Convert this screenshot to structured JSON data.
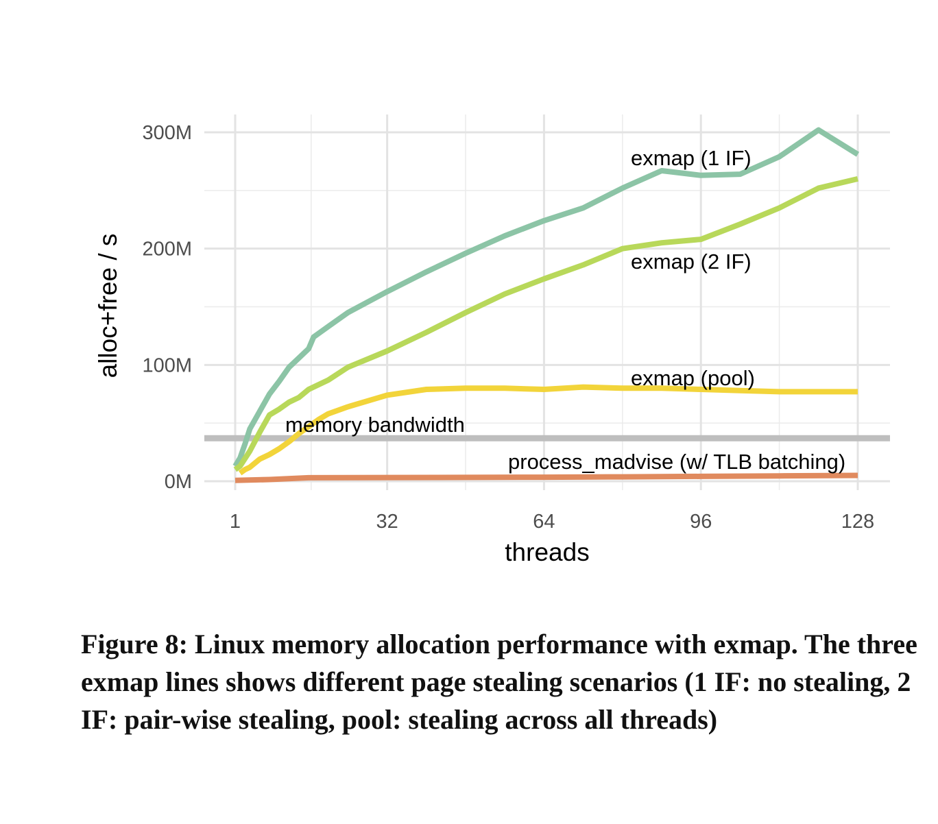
{
  "caption": "Figure 8: Linux memory allocation performance with exmap. The three exmap lines shows different page stealing scenarios (1 IF: no stealing, 2 IF: pair-wise stealing, pool: stealing across all threads)",
  "chart_data": {
    "type": "line",
    "title": "",
    "xlabel": "threads",
    "ylabel": "alloc+free / s",
    "xlim": [
      1,
      128
    ],
    "ylim": [
      0,
      300000000
    ],
    "x_ticks": [
      1,
      32,
      64,
      96,
      128
    ],
    "x_tick_labels": [
      "1",
      "32",
      "64",
      "96",
      "128"
    ],
    "y_ticks": [
      0,
      100000000,
      200000000,
      300000000
    ],
    "y_tick_labels": [
      "0M",
      "100M",
      "200M",
      "300M"
    ],
    "grid": true,
    "legend": "none (direct labels)",
    "reference_lines": [
      {
        "name": "memory bandwidth",
        "y": 37000000,
        "color": "#bebebe"
      }
    ],
    "series": [
      {
        "name": "exmap (1 IF)",
        "color": "#8cc4a6",
        "points": [
          [
            1,
            13000000
          ],
          [
            2,
            20000000
          ],
          [
            3,
            32000000
          ],
          [
            4,
            45000000
          ],
          [
            6,
            60000000
          ],
          [
            8,
            75000000
          ],
          [
            10,
            86000000
          ],
          [
            12,
            98000000
          ],
          [
            14,
            106000000
          ],
          [
            16,
            114000000
          ],
          [
            17,
            124000000
          ],
          [
            20,
            133000000
          ],
          [
            24,
            145000000
          ],
          [
            32,
            163000000
          ],
          [
            40,
            180000000
          ],
          [
            48,
            196000000
          ],
          [
            56,
            211000000
          ],
          [
            64,
            224000000
          ],
          [
            72,
            235000000
          ],
          [
            80,
            252000000
          ],
          [
            88,
            267000000
          ],
          [
            96,
            263000000
          ],
          [
            104,
            264000000
          ],
          [
            112,
            279000000
          ],
          [
            120,
            302000000
          ],
          [
            128,
            281000000
          ]
        ]
      },
      {
        "name": "exmap (2 IF)",
        "color": "#b8d85a",
        "points": [
          [
            1,
            10000000
          ],
          [
            2,
            13000000
          ],
          [
            4,
            26000000
          ],
          [
            6,
            42000000
          ],
          [
            8,
            57000000
          ],
          [
            10,
            62000000
          ],
          [
            12,
            68000000
          ],
          [
            14,
            72000000
          ],
          [
            16,
            79000000
          ],
          [
            20,
            87000000
          ],
          [
            24,
            98000000
          ],
          [
            32,
            112000000
          ],
          [
            40,
            128000000
          ],
          [
            48,
            145000000
          ],
          [
            56,
            161000000
          ],
          [
            64,
            174000000
          ],
          [
            72,
            186000000
          ],
          [
            80,
            200000000
          ],
          [
            88,
            205000000
          ],
          [
            96,
            208000000
          ],
          [
            104,
            221000000
          ],
          [
            112,
            235000000
          ],
          [
            120,
            252000000
          ],
          [
            128,
            260000000
          ]
        ]
      },
      {
        "name": "exmap (pool)",
        "color": "#f2d43a",
        "points": [
          [
            2,
            7000000
          ],
          [
            3,
            10000000
          ],
          [
            4,
            12000000
          ],
          [
            6,
            19000000
          ],
          [
            8,
            23000000
          ],
          [
            10,
            28000000
          ],
          [
            12,
            34000000
          ],
          [
            14,
            41000000
          ],
          [
            16,
            47000000
          ],
          [
            18,
            53000000
          ],
          [
            20,
            58000000
          ],
          [
            24,
            64000000
          ],
          [
            32,
            74000000
          ],
          [
            40,
            79000000
          ],
          [
            48,
            80000000
          ],
          [
            56,
            80000000
          ],
          [
            64,
            79000000
          ],
          [
            72,
            81000000
          ],
          [
            80,
            80000000
          ],
          [
            88,
            80000000
          ],
          [
            96,
            79000000
          ],
          [
            104,
            78000000
          ],
          [
            112,
            77000000
          ],
          [
            120,
            77000000
          ],
          [
            128,
            77000000
          ]
        ]
      },
      {
        "name": "process_madvise (w/ TLB batching)",
        "color": "#e08a5e",
        "points": [
          [
            1,
            700000
          ],
          [
            8,
            1500000
          ],
          [
            16,
            3000000
          ],
          [
            32,
            3200000
          ],
          [
            48,
            3300000
          ],
          [
            64,
            3500000
          ],
          [
            80,
            3800000
          ],
          [
            96,
            4200000
          ],
          [
            112,
            4600000
          ],
          [
            128,
            5000000
          ]
        ]
      }
    ]
  }
}
